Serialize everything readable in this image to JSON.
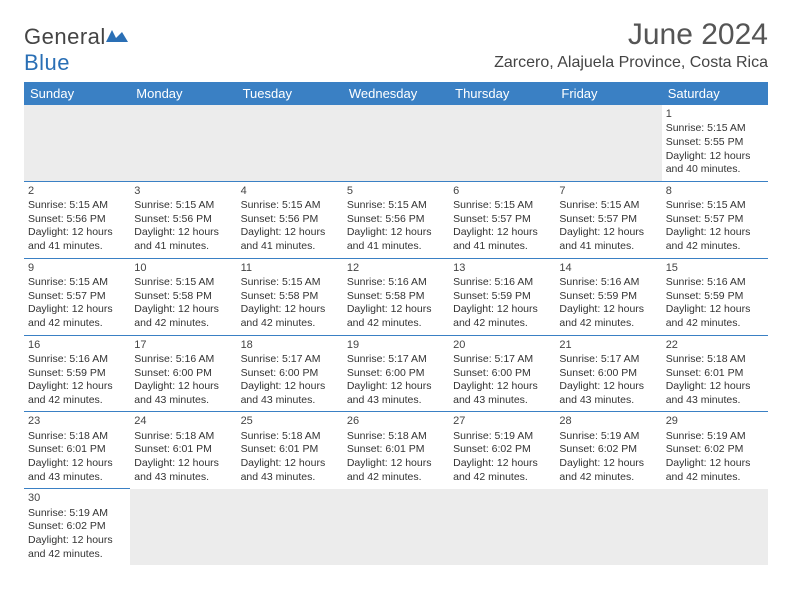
{
  "brand": {
    "name_a": "General",
    "name_b": "Blue"
  },
  "title": "June 2024",
  "location": "Zarcero, Alajuela Province, Costa Rica",
  "colors": {
    "header_bg": "#3a80c4",
    "header_text": "#ffffff",
    "cell_border": "#3a80c4",
    "empty_bg": "#ececec",
    "text": "#333333",
    "title_color": "#555555",
    "logo_blue": "#2a6fb5"
  },
  "weekdays": [
    "Sunday",
    "Monday",
    "Tuesday",
    "Wednesday",
    "Thursday",
    "Friday",
    "Saturday"
  ],
  "days": {
    "1": {
      "sunrise": "5:15 AM",
      "sunset": "5:55 PM",
      "daylight": "12 hours and 40 minutes."
    },
    "2": {
      "sunrise": "5:15 AM",
      "sunset": "5:56 PM",
      "daylight": "12 hours and 41 minutes."
    },
    "3": {
      "sunrise": "5:15 AM",
      "sunset": "5:56 PM",
      "daylight": "12 hours and 41 minutes."
    },
    "4": {
      "sunrise": "5:15 AM",
      "sunset": "5:56 PM",
      "daylight": "12 hours and 41 minutes."
    },
    "5": {
      "sunrise": "5:15 AM",
      "sunset": "5:56 PM",
      "daylight": "12 hours and 41 minutes."
    },
    "6": {
      "sunrise": "5:15 AM",
      "sunset": "5:57 PM",
      "daylight": "12 hours and 41 minutes."
    },
    "7": {
      "sunrise": "5:15 AM",
      "sunset": "5:57 PM",
      "daylight": "12 hours and 41 minutes."
    },
    "8": {
      "sunrise": "5:15 AM",
      "sunset": "5:57 PM",
      "daylight": "12 hours and 42 minutes."
    },
    "9": {
      "sunrise": "5:15 AM",
      "sunset": "5:57 PM",
      "daylight": "12 hours and 42 minutes."
    },
    "10": {
      "sunrise": "5:15 AM",
      "sunset": "5:58 PM",
      "daylight": "12 hours and 42 minutes."
    },
    "11": {
      "sunrise": "5:15 AM",
      "sunset": "5:58 PM",
      "daylight": "12 hours and 42 minutes."
    },
    "12": {
      "sunrise": "5:16 AM",
      "sunset": "5:58 PM",
      "daylight": "12 hours and 42 minutes."
    },
    "13": {
      "sunrise": "5:16 AM",
      "sunset": "5:59 PM",
      "daylight": "12 hours and 42 minutes."
    },
    "14": {
      "sunrise": "5:16 AM",
      "sunset": "5:59 PM",
      "daylight": "12 hours and 42 minutes."
    },
    "15": {
      "sunrise": "5:16 AM",
      "sunset": "5:59 PM",
      "daylight": "12 hours and 42 minutes."
    },
    "16": {
      "sunrise": "5:16 AM",
      "sunset": "5:59 PM",
      "daylight": "12 hours and 42 minutes."
    },
    "17": {
      "sunrise": "5:16 AM",
      "sunset": "6:00 PM",
      "daylight": "12 hours and 43 minutes."
    },
    "18": {
      "sunrise": "5:17 AM",
      "sunset": "6:00 PM",
      "daylight": "12 hours and 43 minutes."
    },
    "19": {
      "sunrise": "5:17 AM",
      "sunset": "6:00 PM",
      "daylight": "12 hours and 43 minutes."
    },
    "20": {
      "sunrise": "5:17 AM",
      "sunset": "6:00 PM",
      "daylight": "12 hours and 43 minutes."
    },
    "21": {
      "sunrise": "5:17 AM",
      "sunset": "6:00 PM",
      "daylight": "12 hours and 43 minutes."
    },
    "22": {
      "sunrise": "5:18 AM",
      "sunset": "6:01 PM",
      "daylight": "12 hours and 43 minutes."
    },
    "23": {
      "sunrise": "5:18 AM",
      "sunset": "6:01 PM",
      "daylight": "12 hours and 43 minutes."
    },
    "24": {
      "sunrise": "5:18 AM",
      "sunset": "6:01 PM",
      "daylight": "12 hours and 43 minutes."
    },
    "25": {
      "sunrise": "5:18 AM",
      "sunset": "6:01 PM",
      "daylight": "12 hours and 43 minutes."
    },
    "26": {
      "sunrise": "5:18 AM",
      "sunset": "6:01 PM",
      "daylight": "12 hours and 42 minutes."
    },
    "27": {
      "sunrise": "5:19 AM",
      "sunset": "6:02 PM",
      "daylight": "12 hours and 42 minutes."
    },
    "28": {
      "sunrise": "5:19 AM",
      "sunset": "6:02 PM",
      "daylight": "12 hours and 42 minutes."
    },
    "29": {
      "sunrise": "5:19 AM",
      "sunset": "6:02 PM",
      "daylight": "12 hours and 42 minutes."
    },
    "30": {
      "sunrise": "5:19 AM",
      "sunset": "6:02 PM",
      "daylight": "12 hours and 42 minutes."
    }
  },
  "labels": {
    "sunrise": "Sunrise: ",
    "sunset": "Sunset: ",
    "daylight": "Daylight: "
  },
  "layout": {
    "first_weekday_index": 6,
    "num_days": 30,
    "columns": 7
  },
  "typography": {
    "title_fontsize": 30,
    "location_fontsize": 16,
    "header_fontsize": 13,
    "cell_fontsize": 10.5,
    "daynum_fontsize": 11
  }
}
